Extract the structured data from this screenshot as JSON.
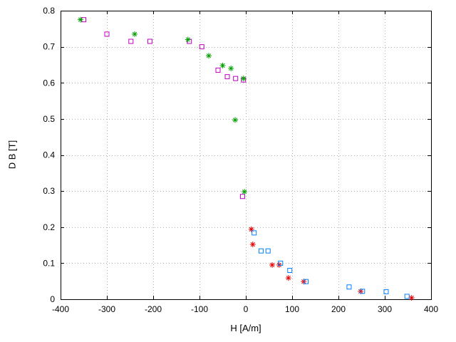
{
  "figure": {
    "background_color": "#ffffff",
    "text_color": "#000000",
    "grid_color": "#b0b0b0",
    "border_color": "#000000"
  },
  "chart_data": {
    "type": "scatter",
    "title": "",
    "xlabel": "H [A/m]",
    "ylabel": "D B [T]",
    "xlim": [
      -400,
      400
    ],
    "ylim": [
      0,
      0.8
    ],
    "xticks": [
      -400,
      -300,
      -200,
      -100,
      0,
      100,
      200,
      300,
      400
    ],
    "xtick_labels": [
      "-400",
      "-300",
      "-200",
      "-100",
      "0",
      "100",
      "200",
      "300",
      "400"
    ],
    "yticks": [
      0,
      0.1,
      0.2,
      0.3,
      0.4,
      0.5,
      0.6,
      0.7,
      0.8
    ],
    "ytick_labels": [
      "0",
      "0.1",
      "0.2",
      "0.3",
      "0.4",
      "0.5",
      "0.6",
      "0.7",
      "0.8"
    ],
    "grid": true,
    "legend_position": "none",
    "series": [
      {
        "name": "magenta-squares",
        "marker": "square",
        "color": "#c000c0",
        "points": [
          [
            -350,
            0.775
          ],
          [
            -300,
            0.735
          ],
          [
            -248,
            0.715
          ],
          [
            -207,
            0.715
          ],
          [
            -122,
            0.715
          ],
          [
            -95,
            0.7
          ],
          [
            -60,
            0.635
          ],
          [
            -40,
            0.617
          ],
          [
            -22,
            0.612
          ],
          [
            -5,
            0.608
          ],
          [
            -7,
            0.285
          ]
        ]
      },
      {
        "name": "green-asterisks",
        "marker": "asterisk",
        "color": "#00a000",
        "points": [
          [
            -357,
            0.775
          ],
          [
            -240,
            0.735
          ],
          [
            -125,
            0.72
          ],
          [
            -80,
            0.675
          ],
          [
            -50,
            0.648
          ],
          [
            -32,
            0.64
          ],
          [
            -5,
            0.612
          ],
          [
            -23,
            0.497
          ],
          [
            -3,
            0.298
          ]
        ]
      },
      {
        "name": "red-asterisks",
        "marker": "asterisk",
        "color": "#e60000",
        "points": [
          [
            12,
            0.194
          ],
          [
            15,
            0.152
          ],
          [
            57,
            0.095
          ],
          [
            72,
            0.095
          ],
          [
            92,
            0.059
          ],
          [
            125,
            0.049
          ],
          [
            248,
            0.022
          ],
          [
            358,
            0.004
          ]
        ]
      },
      {
        "name": "blue-squares",
        "marker": "square",
        "color": "#0080ff",
        "points": [
          [
            18,
            0.184
          ],
          [
            33,
            0.134
          ],
          [
            48,
            0.134
          ],
          [
            75,
            0.1
          ],
          [
            95,
            0.08
          ],
          [
            130,
            0.049
          ],
          [
            223,
            0.034
          ],
          [
            252,
            0.022
          ],
          [
            303,
            0.021
          ],
          [
            348,
            0.008
          ]
        ]
      }
    ]
  }
}
